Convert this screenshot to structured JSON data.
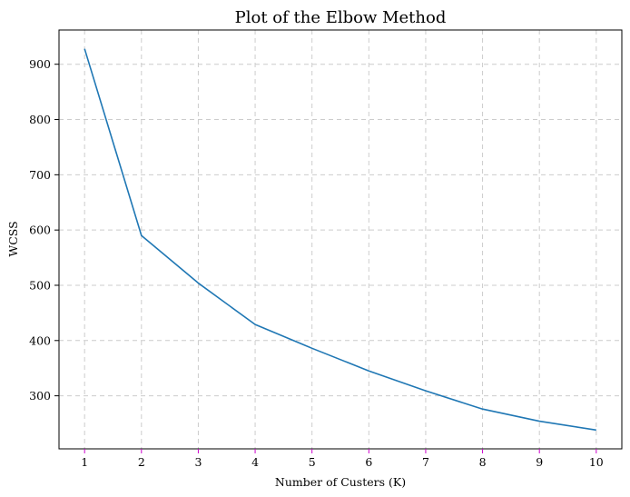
{
  "chart_data": {
    "type": "line",
    "title": "Plot of the Elbow Method",
    "xlabel": "Number of Custers (K)",
    "ylabel": "WCSS",
    "x": [
      1,
      2,
      3,
      4,
      5,
      6,
      7,
      8,
      9,
      10
    ],
    "x_tick_labels": [
      "1",
      "2",
      "3",
      "4",
      "5",
      "6",
      "7",
      "8",
      "9",
      "10"
    ],
    "y_ticks": [
      300,
      400,
      500,
      600,
      700,
      800,
      900
    ],
    "y_tick_labels": [
      "300",
      "400",
      "500",
      "600",
      "700",
      "800",
      "900"
    ],
    "series": [
      {
        "values": [
          928,
          590,
          504,
          429,
          386,
          345,
          309,
          276,
          254,
          238
        ],
        "color": "#1f77b4"
      }
    ],
    "xlim": [
      0.55,
      10.45
    ],
    "ylim": [
      204,
      962
    ],
    "grid": true,
    "grid_color": "#cccccc",
    "x_tick_color": "#cc00cc"
  }
}
